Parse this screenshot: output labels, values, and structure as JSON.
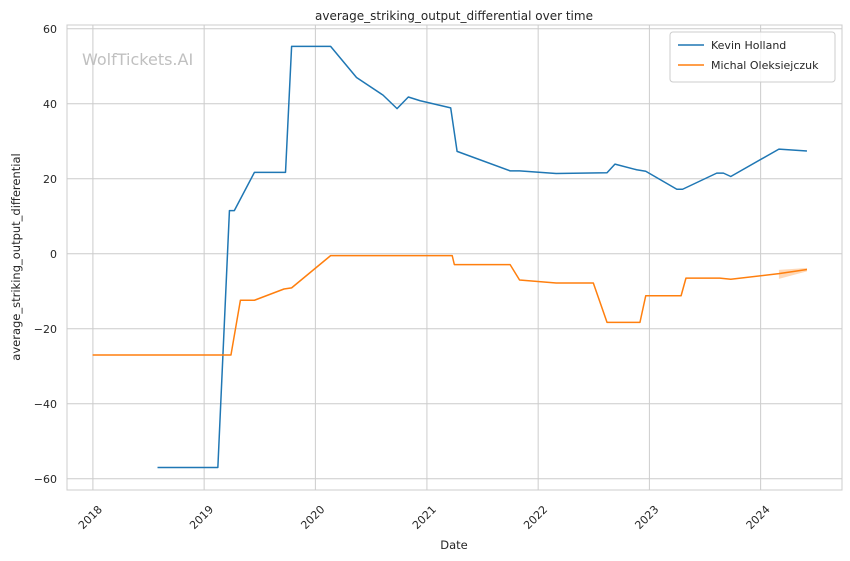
{
  "watermark": "WolfTickets.AI",
  "chart_data": {
    "type": "line",
    "title": "average_striking_output_differential over time",
    "xlabel": "Date",
    "ylabel": "average_striking_output_differential",
    "x_ticks": [
      "2018",
      "2019",
      "2020",
      "2021",
      "2022",
      "2023",
      "2024"
    ],
    "y_ticks": [
      60,
      40,
      20,
      0,
      -20,
      -40,
      -60
    ],
    "y_tick_labels": [
      "60",
      "40",
      "20",
      "0",
      "−20",
      "−40",
      "−60"
    ],
    "xlim": [
      "2017-10-08",
      "2024-09-24"
    ],
    "ylim": [
      -63,
      61
    ],
    "grid": true,
    "legend_position": "top-right",
    "series": [
      {
        "name": "Kevin Holland",
        "color": "#1f77b4",
        "points": [
          [
            "2018-08-01",
            -57
          ],
          [
            "2019-02-15",
            -57
          ],
          [
            "2019-03-25",
            11.5
          ],
          [
            "2019-04-10",
            11.5
          ],
          [
            "2019-06-15",
            21.7
          ],
          [
            "2019-09-25",
            21.7
          ],
          [
            "2019-10-15",
            55.3
          ],
          [
            "2020-02-20",
            55.3
          ],
          [
            "2020-05-15",
            47
          ],
          [
            "2020-08-10",
            42.3
          ],
          [
            "2020-09-25",
            38.7
          ],
          [
            "2020-11-01",
            41.8
          ],
          [
            "2020-12-10",
            40.8
          ],
          [
            "2021-03-20",
            38.9
          ],
          [
            "2021-04-10",
            27.3
          ],
          [
            "2021-10-01",
            22.1
          ],
          [
            "2021-11-01",
            22.1
          ],
          [
            "2022-03-01",
            21.4
          ],
          [
            "2022-08-15",
            21.6
          ],
          [
            "2022-09-10",
            23.9
          ],
          [
            "2022-11-20",
            22.4
          ],
          [
            "2022-12-20",
            22.0
          ],
          [
            "2023-04-01",
            17.2
          ],
          [
            "2023-04-20",
            17.2
          ],
          [
            "2023-08-10",
            21.5
          ],
          [
            "2023-09-01",
            21.5
          ],
          [
            "2023-09-25",
            20.6
          ],
          [
            "2024-03-01",
            27.9
          ],
          [
            "2024-06-01",
            27.4
          ]
        ]
      },
      {
        "name": "Michal Oleksiejczuk",
        "color": "#ff7f0e",
        "points": [
          [
            "2017-12-31",
            -27
          ],
          [
            "2019-03-30",
            -27
          ],
          [
            "2019-04-30",
            -12.4
          ],
          [
            "2019-06-15",
            -12.4
          ],
          [
            "2019-09-20",
            -9.4
          ],
          [
            "2019-10-15",
            -9.1
          ],
          [
            "2020-02-20",
            -0.5
          ],
          [
            "2021-03-25",
            -0.5
          ],
          [
            "2021-04-01",
            -2.9
          ],
          [
            "2021-10-01",
            -2.9
          ],
          [
            "2021-11-01",
            -7.0
          ],
          [
            "2022-03-01",
            -7.8
          ],
          [
            "2022-07-01",
            -7.8
          ],
          [
            "2022-08-15",
            -18.3
          ],
          [
            "2022-12-01",
            -18.3
          ],
          [
            "2022-12-20",
            -11.2
          ],
          [
            "2023-04-15",
            -11.2
          ],
          [
            "2023-05-01",
            -6.5
          ],
          [
            "2023-08-20",
            -6.5
          ],
          [
            "2023-09-25",
            -6.8
          ],
          [
            "2024-03-01",
            -5.3
          ],
          [
            "2024-06-01",
            -4.2
          ]
        ],
        "band": [
          [
            "2024-03-01",
            -6.7,
            -4.3
          ],
          [
            "2024-06-01",
            -4.7,
            -3.8
          ]
        ]
      }
    ]
  }
}
